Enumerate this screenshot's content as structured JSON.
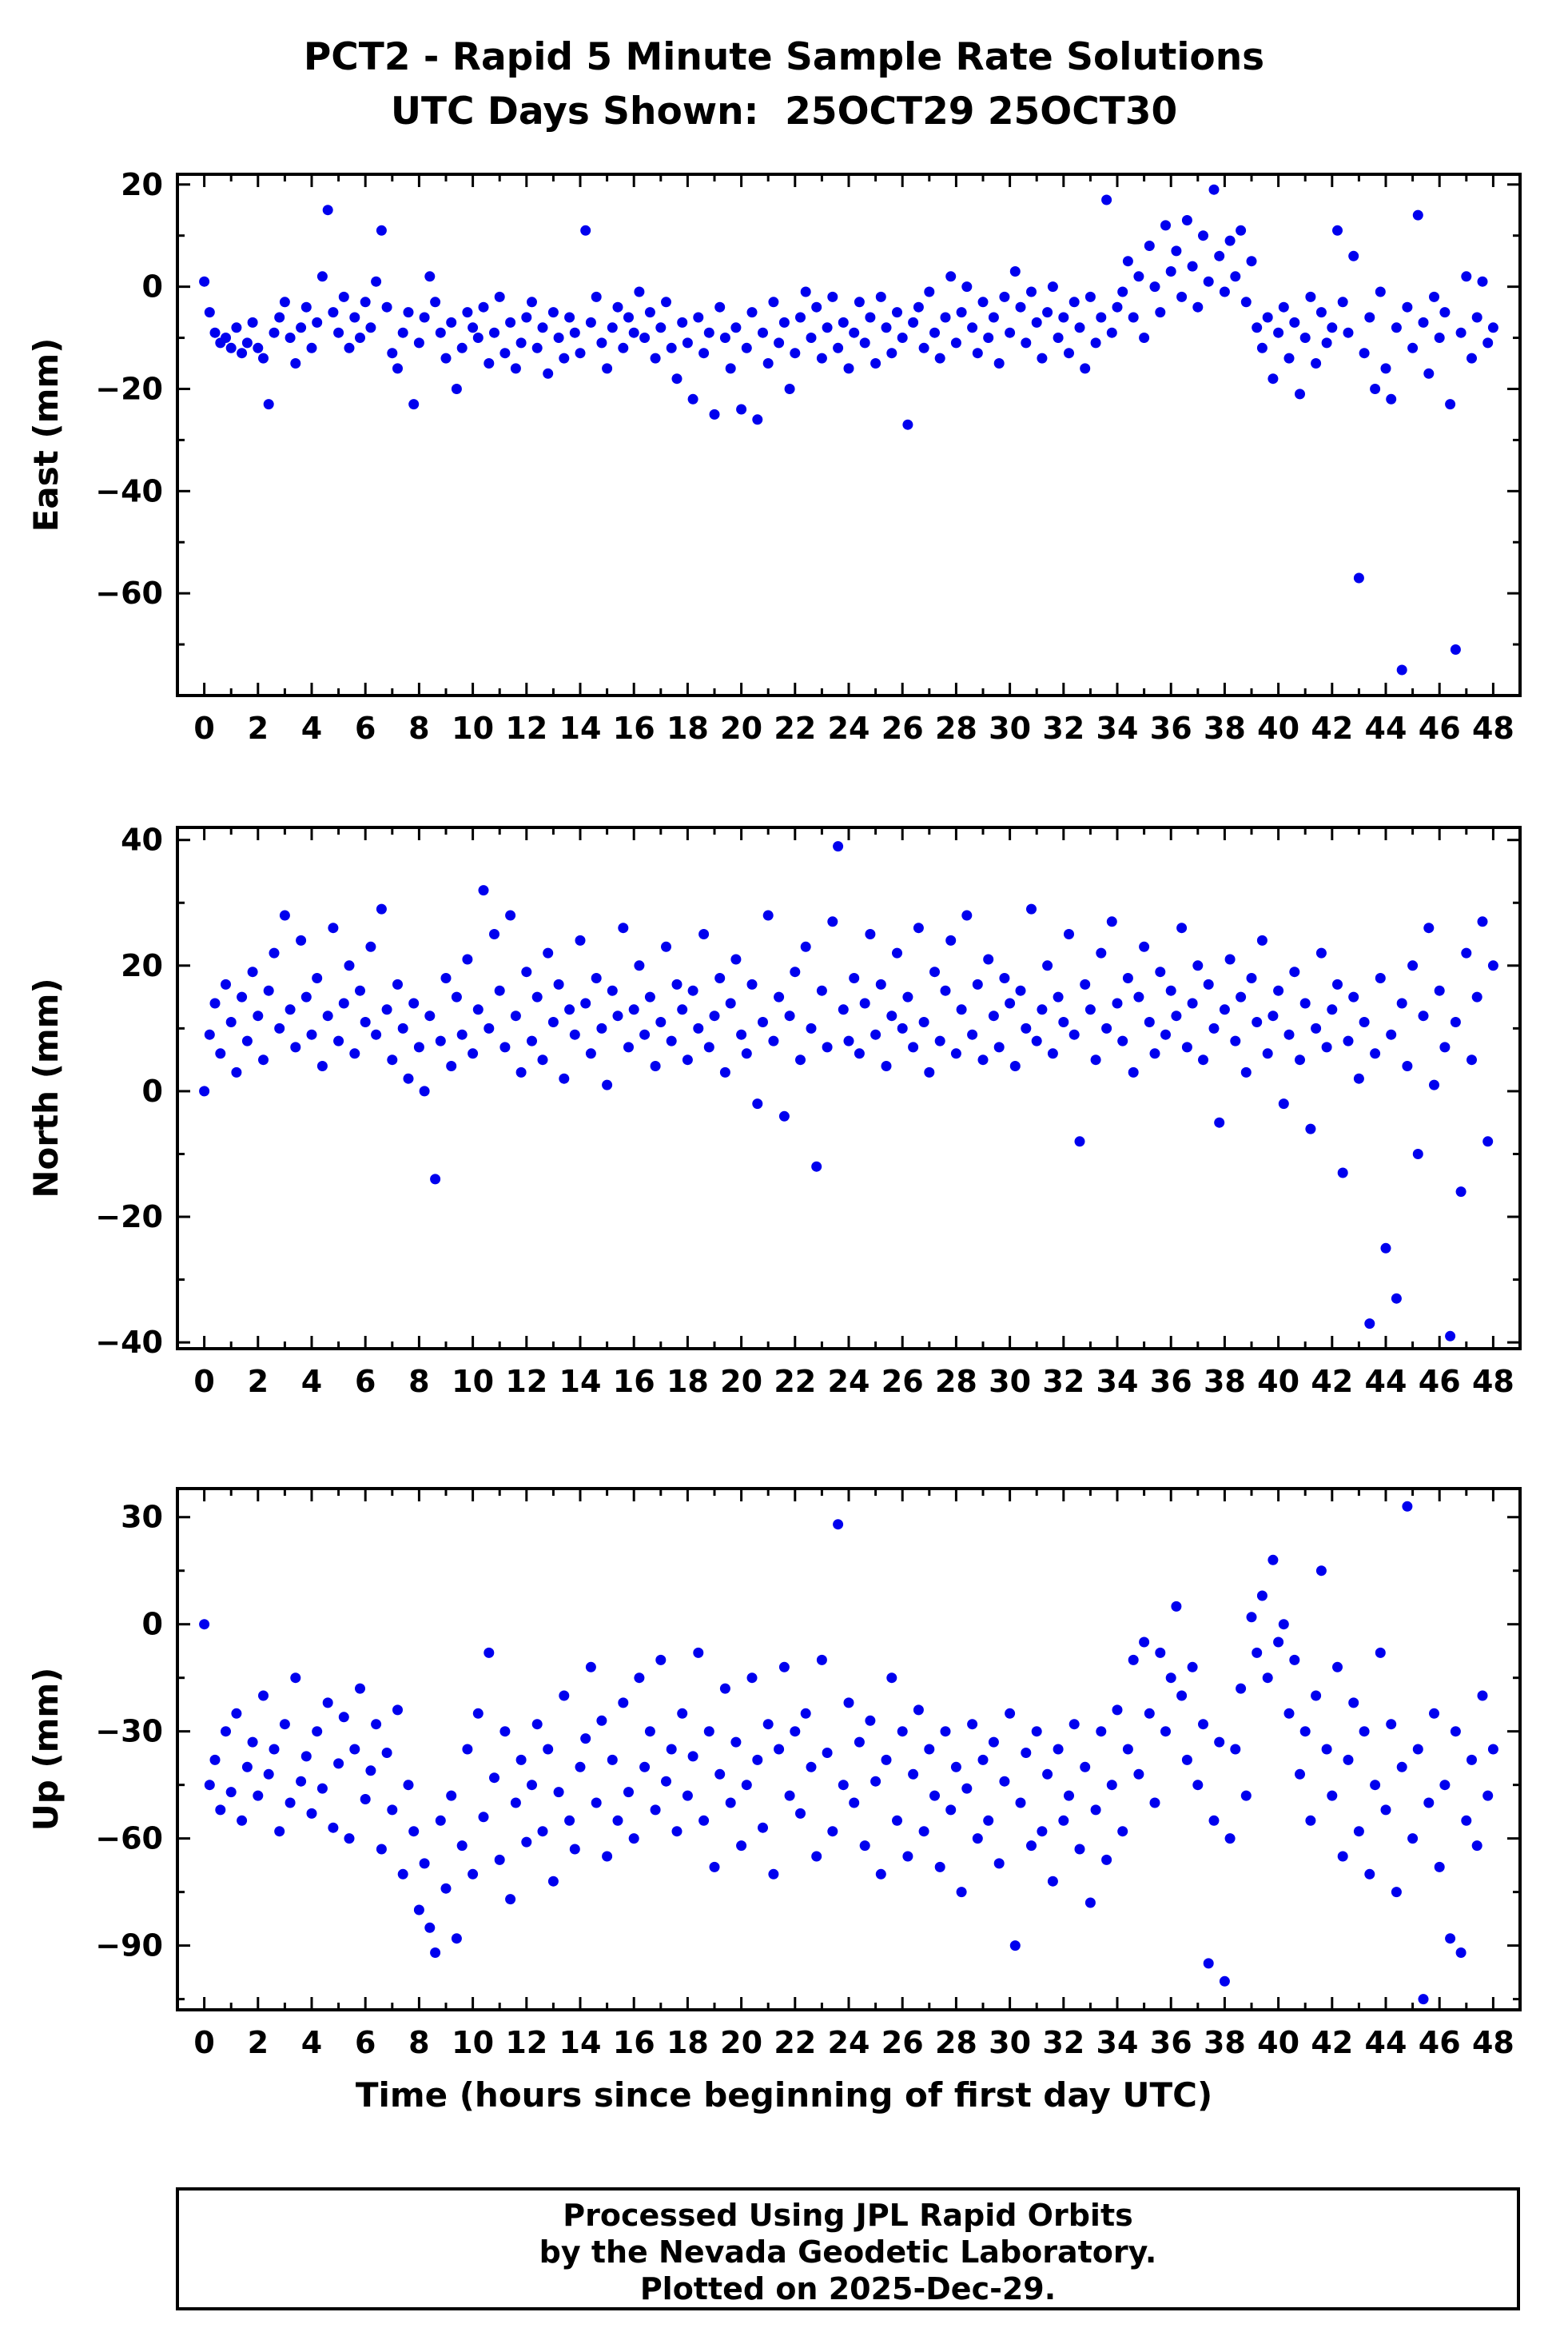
{
  "title": {
    "line1": "PCT2 - Rapid 5 Minute Sample Rate Solutions",
    "line2": "UTC Days Shown:  25OCT29 25OCT30"
  },
  "footer": {
    "line1": "Processed Using JPL Rapid Orbits",
    "line2": "by the Nevada Geodetic Laboratory.",
    "line3": "Plotted on 2025-Dec-29."
  },
  "chart_data": {
    "type": "scatter",
    "xlabel": "Time (hours since beginning of first day UTC)",
    "xlim": [
      -1,
      49
    ],
    "xticks": [
      0,
      2,
      4,
      6,
      8,
      10,
      12,
      14,
      16,
      18,
      20,
      22,
      24,
      26,
      28,
      30,
      32,
      34,
      36,
      38,
      40,
      42,
      44,
      46,
      48
    ],
    "x_start": 0,
    "x_step": 0.2,
    "marker_color": "#0000ee",
    "axis_color": "#000000",
    "panels": [
      {
        "name": "east",
        "ylabel": "East (mm)",
        "ylim": [
          -80,
          22
        ],
        "yticks": [
          20,
          0,
          -20,
          -40,
          -60
        ],
        "y": [
          1,
          -5,
          -9,
          -11,
          -10,
          -12,
          -8,
          -13,
          -11,
          -7,
          -12,
          -14,
          -23,
          -9,
          -6,
          -3,
          -10,
          -15,
          -8,
          -4,
          -12,
          -7,
          2,
          15,
          -5,
          -9,
          -2,
          -12,
          -6,
          -10,
          -3,
          -8,
          1,
          11,
          -4,
          -13,
          -16,
          -9,
          -5,
          -23,
          -11,
          -6,
          2,
          -3,
          -9,
          -14,
          -7,
          -20,
          -12,
          -5,
          -8,
          -10,
          -4,
          -15,
          -9,
          -2,
          -13,
          -7,
          -16,
          -11,
          -6,
          -3,
          -12,
          -8,
          -17,
          -5,
          -10,
          -14,
          -6,
          -9,
          -13,
          11,
          -7,
          -2,
          -11,
          -16,
          -8,
          -4,
          -12,
          -6,
          -9,
          -1,
          -10,
          -5,
          -14,
          -8,
          -3,
          -12,
          -18,
          -7,
          -11,
          -22,
          -6,
          -13,
          -9,
          -25,
          -4,
          -10,
          -16,
          -8,
          -24,
          -12,
          -5,
          -26,
          -9,
          -15,
          -3,
          -11,
          -7,
          -20,
          -13,
          -6,
          -1,
          -10,
          -4,
          -14,
          -8,
          -2,
          -12,
          -7,
          -16,
          -9,
          -3,
          -11,
          -6,
          -15,
          -2,
          -8,
          -13,
          -5,
          -10,
          -27,
          -7,
          -4,
          -12,
          -1,
          -9,
          -14,
          -6,
          2,
          -11,
          -5,
          0,
          -8,
          -13,
          -3,
          -10,
          -6,
          -15,
          -2,
          -9,
          3,
          -4,
          -11,
          -1,
          -7,
          -14,
          -5,
          0,
          -10,
          -6,
          -13,
          -3,
          -8,
          -16,
          -2,
          -11,
          -6,
          17,
          -9,
          -4,
          -1,
          5,
          -6,
          2,
          -10,
          8,
          0,
          -5,
          12,
          3,
          7,
          -2,
          13,
          4,
          -4,
          10,
          1,
          19,
          6,
          -1,
          9,
          2,
          11,
          -3,
          5,
          -8,
          -12,
          -6,
          -18,
          -9,
          -4,
          -14,
          -7,
          -21,
          -10,
          -2,
          -15,
          -5,
          -11,
          -8,
          11,
          -3,
          -9,
          6,
          -57,
          -13,
          -6,
          -20,
          -1,
          -16,
          -22,
          -8,
          -75,
          -4,
          -12,
          14,
          -7,
          -17,
          -2,
          -10,
          -5,
          -23,
          -71,
          -9,
          2,
          -14,
          -6,
          1,
          -11,
          -8
        ]
      },
      {
        "name": "north",
        "ylabel": "North (mm)",
        "ylim": [
          -41,
          42
        ],
        "yticks": [
          40,
          20,
          0,
          -20,
          -40
        ],
        "y": [
          0,
          9,
          14,
          6,
          17,
          11,
          3,
          15,
          8,
          19,
          12,
          5,
          16,
          22,
          10,
          28,
          13,
          7,
          24,
          15,
          9,
          18,
          4,
          12,
          26,
          8,
          14,
          20,
          6,
          16,
          11,
          23,
          9,
          29,
          13,
          5,
          17,
          10,
          2,
          14,
          7,
          0,
          12,
          -14,
          8,
          18,
          4,
          15,
          9,
          21,
          6,
          13,
          32,
          10,
          25,
          16,
          7,
          28,
          12,
          3,
          19,
          8,
          15,
          5,
          22,
          11,
          17,
          2,
          13,
          9,
          24,
          14,
          6,
          18,
          10,
          1,
          16,
          12,
          26,
          7,
          13,
          20,
          9,
          15,
          4,
          11,
          23,
          8,
          17,
          13,
          5,
          16,
          10,
          25,
          7,
          12,
          18,
          3,
          14,
          21,
          9,
          6,
          17,
          -2,
          11,
          28,
          8,
          15,
          -4,
          12,
          19,
          5,
          23,
          10,
          -12,
          16,
          7,
          27,
          39,
          13,
          8,
          18,
          6,
          14,
          25,
          9,
          17,
          4,
          12,
          22,
          10,
          15,
          7,
          26,
          11,
          3,
          19,
          8,
          16,
          24,
          6,
          13,
          28,
          9,
          17,
          5,
          21,
          12,
          7,
          18,
          14,
          4,
          16,
          10,
          29,
          8,
          13,
          20,
          6,
          15,
          11,
          25,
          9,
          -8,
          17,
          13,
          5,
          22,
          10,
          27,
          14,
          8,
          18,
          3,
          15,
          23,
          11,
          6,
          19,
          9,
          16,
          12,
          26,
          7,
          14,
          20,
          5,
          17,
          10,
          -5,
          13,
          21,
          8,
          15,
          3,
          18,
          11,
          24,
          6,
          12,
          16,
          -2,
          9,
          19,
          5,
          14,
          -6,
          10,
          22,
          7,
          13,
          17,
          -13,
          8,
          15,
          2,
          11,
          -37,
          6,
          18,
          -25,
          9,
          -33,
          14,
          4,
          20,
          -10,
          12,
          26,
          1,
          16,
          7,
          -39,
          11,
          -16,
          22,
          5,
          15,
          27,
          -8,
          20
        ]
      },
      {
        "name": "up",
        "ylabel": "Up (mm)",
        "ylim": [
          -108,
          38
        ],
        "yticks": [
          30,
          0,
          -30,
          -60,
          -90
        ],
        "y": [
          0,
          -45,
          -38,
          -52,
          -30,
          -47,
          -25,
          -55,
          -40,
          -33,
          -48,
          -20,
          -42,
          -35,
          -58,
          -28,
          -50,
          -15,
          -44,
          -37,
          -53,
          -30,
          -46,
          -22,
          -57,
          -39,
          -26,
          -60,
          -35,
          -18,
          -49,
          -41,
          -28,
          -63,
          -36,
          -52,
          -24,
          -70,
          -45,
          -58,
          -80,
          -67,
          -85,
          -92,
          -55,
          -74,
          -48,
          -88,
          -62,
          -35,
          -70,
          -25,
          -54,
          -8,
          -43,
          -66,
          -30,
          -77,
          -50,
          -38,
          -61,
          -45,
          -28,
          -58,
          -35,
          -72,
          -47,
          -20,
          -55,
          -63,
          -40,
          -32,
          -12,
          -50,
          -27,
          -65,
          -38,
          -55,
          -22,
          -47,
          -60,
          -15,
          -40,
          -30,
          -52,
          -10,
          -44,
          -35,
          -58,
          -25,
          -48,
          -37,
          -8,
          -55,
          -30,
          -68,
          -42,
          -18,
          -50,
          -33,
          -62,
          -45,
          -15,
          -38,
          -57,
          -28,
          -70,
          -35,
          -12,
          -48,
          -30,
          -53,
          -25,
          -40,
          -65,
          -10,
          -36,
          -58,
          28,
          -45,
          -22,
          -50,
          -33,
          -62,
          -27,
          -44,
          -70,
          -38,
          -15,
          -55,
          -30,
          -65,
          -42,
          -24,
          -58,
          -35,
          -48,
          -68,
          -30,
          -52,
          -40,
          -75,
          -46,
          -28,
          -60,
          -38,
          -55,
          -33,
          -67,
          -44,
          -25,
          -90,
          -50,
          -36,
          -62,
          -30,
          -58,
          -42,
          -72,
          -35,
          -55,
          -48,
          -28,
          -63,
          -40,
          -78,
          -52,
          -30,
          -66,
          -45,
          -24,
          -58,
          -35,
          -10,
          -42,
          -5,
          -25,
          -50,
          -8,
          -30,
          -15,
          5,
          -20,
          -38,
          -12,
          -45,
          -28,
          -95,
          -55,
          -33,
          -100,
          -60,
          -35,
          -18,
          -48,
          2,
          -8,
          8,
          -15,
          18,
          -5,
          0,
          -25,
          -10,
          -42,
          -30,
          -55,
          -20,
          15,
          -35,
          -48,
          -12,
          -65,
          -38,
          -22,
          -58,
          -30,
          -70,
          -45,
          -8,
          -52,
          -28,
          -75,
          -40,
          33,
          -60,
          -35,
          -105,
          -50,
          -25,
          -68,
          -45,
          -88,
          -30,
          -92,
          -55,
          -38,
          -62,
          -20,
          -48,
          -35
        ]
      }
    ]
  }
}
